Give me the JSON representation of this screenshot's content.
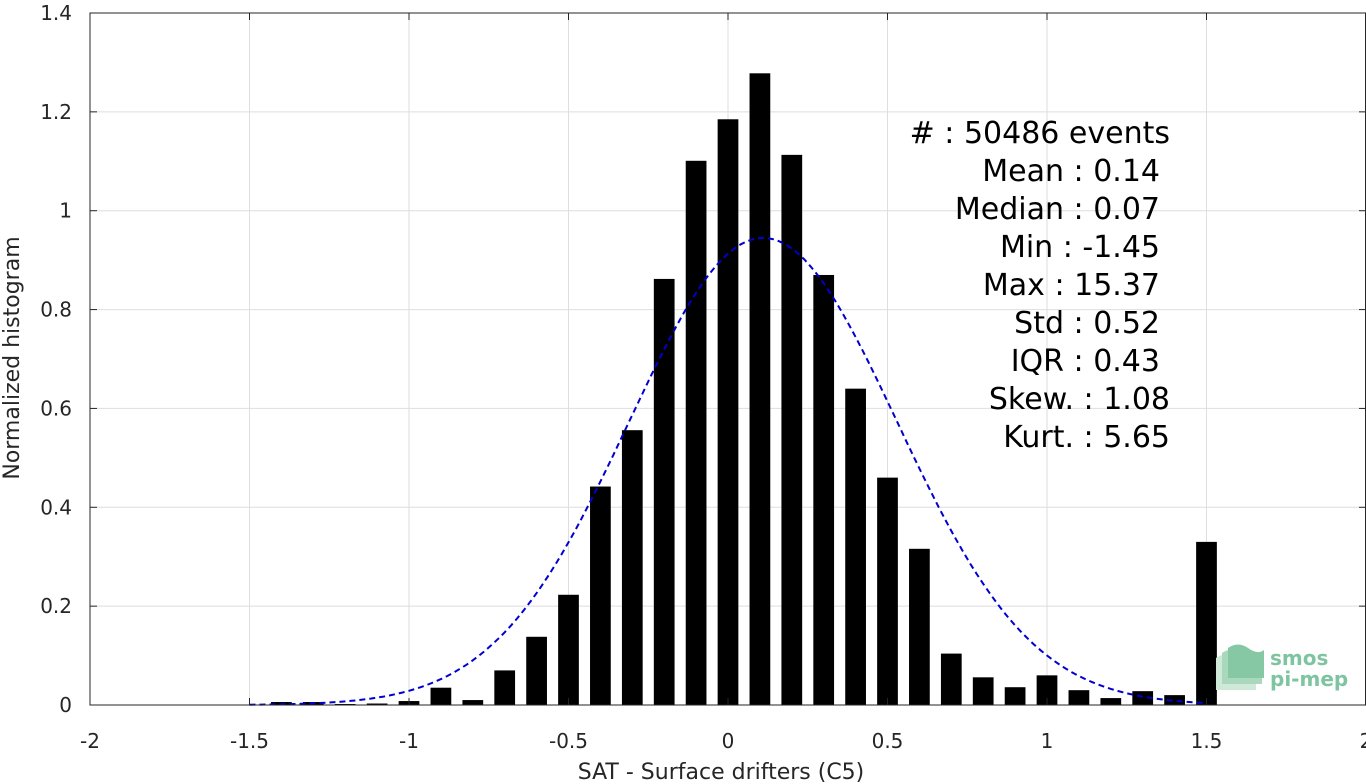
{
  "chart_data": {
    "type": "bar",
    "xlabel": "SAT - Surface drifters (C5)",
    "ylabel": "Normalized histogram",
    "xlim": [
      -2,
      2
    ],
    "ylim": [
      0,
      1.4
    ],
    "xticks": [
      -2,
      -1.5,
      -1,
      -0.5,
      0,
      0.5,
      1,
      1.5,
      2
    ],
    "xtick_labels": [
      "-2",
      "-1.5",
      "-1",
      "-0.5",
      "0",
      "0.5",
      "1",
      "1.5",
      "2"
    ],
    "yticks": [
      0,
      0.2,
      0.4,
      0.6,
      0.8,
      1,
      1.2,
      1.4
    ],
    "ytick_labels": [
      "0",
      "0.2",
      "0.4",
      "0.6",
      "0.8",
      "1",
      "1.2",
      "1.4"
    ],
    "grid": true,
    "bar_color": "#000000",
    "bins": [
      -1.4,
      -1.3,
      -1.2,
      -1.1,
      -1.0,
      -0.9,
      -0.8,
      -0.7,
      -0.6,
      -0.5,
      -0.4,
      -0.3,
      -0.2,
      -0.1,
      0.0,
      0.1,
      0.2,
      0.3,
      0.4,
      0.5,
      0.6,
      0.7,
      0.8,
      0.9,
      1.0,
      1.1,
      1.2,
      1.3,
      1.4,
      1.5
    ],
    "values": [
      0.006,
      0.006,
      0.002,
      0.003,
      0.008,
      0.035,
      0.01,
      0.07,
      0.138,
      0.223,
      0.442,
      0.556,
      0.862,
      1.101,
      1.185,
      1.278,
      1.113,
      0.87,
      0.64,
      0.46,
      0.316,
      0.104,
      0.056,
      0.036,
      0.06,
      0.03,
      0.014,
      0.028,
      0.02,
      0.33
    ],
    "fit": {
      "name": "gaussian",
      "style": "dashed",
      "color": "#0000d0",
      "mean": 0.11,
      "std": 0.42,
      "peak": 0.945,
      "range": [
        -1.5,
        1.5
      ]
    }
  },
  "stats": {
    "count": "#  : 50486 events",
    "mean": "Mean : 0.14",
    "median": "Median : 0.07",
    "min": "Min : -1.45",
    "max": "Max : 15.37",
    "std": "Std : 0.52",
    "iqr": "IQR : 0.43",
    "skew": "Skew. : 1.08",
    "kurt": "Kurt. : 5.65"
  },
  "logo": {
    "line1": "smos",
    "line2": "pi-mep"
  }
}
